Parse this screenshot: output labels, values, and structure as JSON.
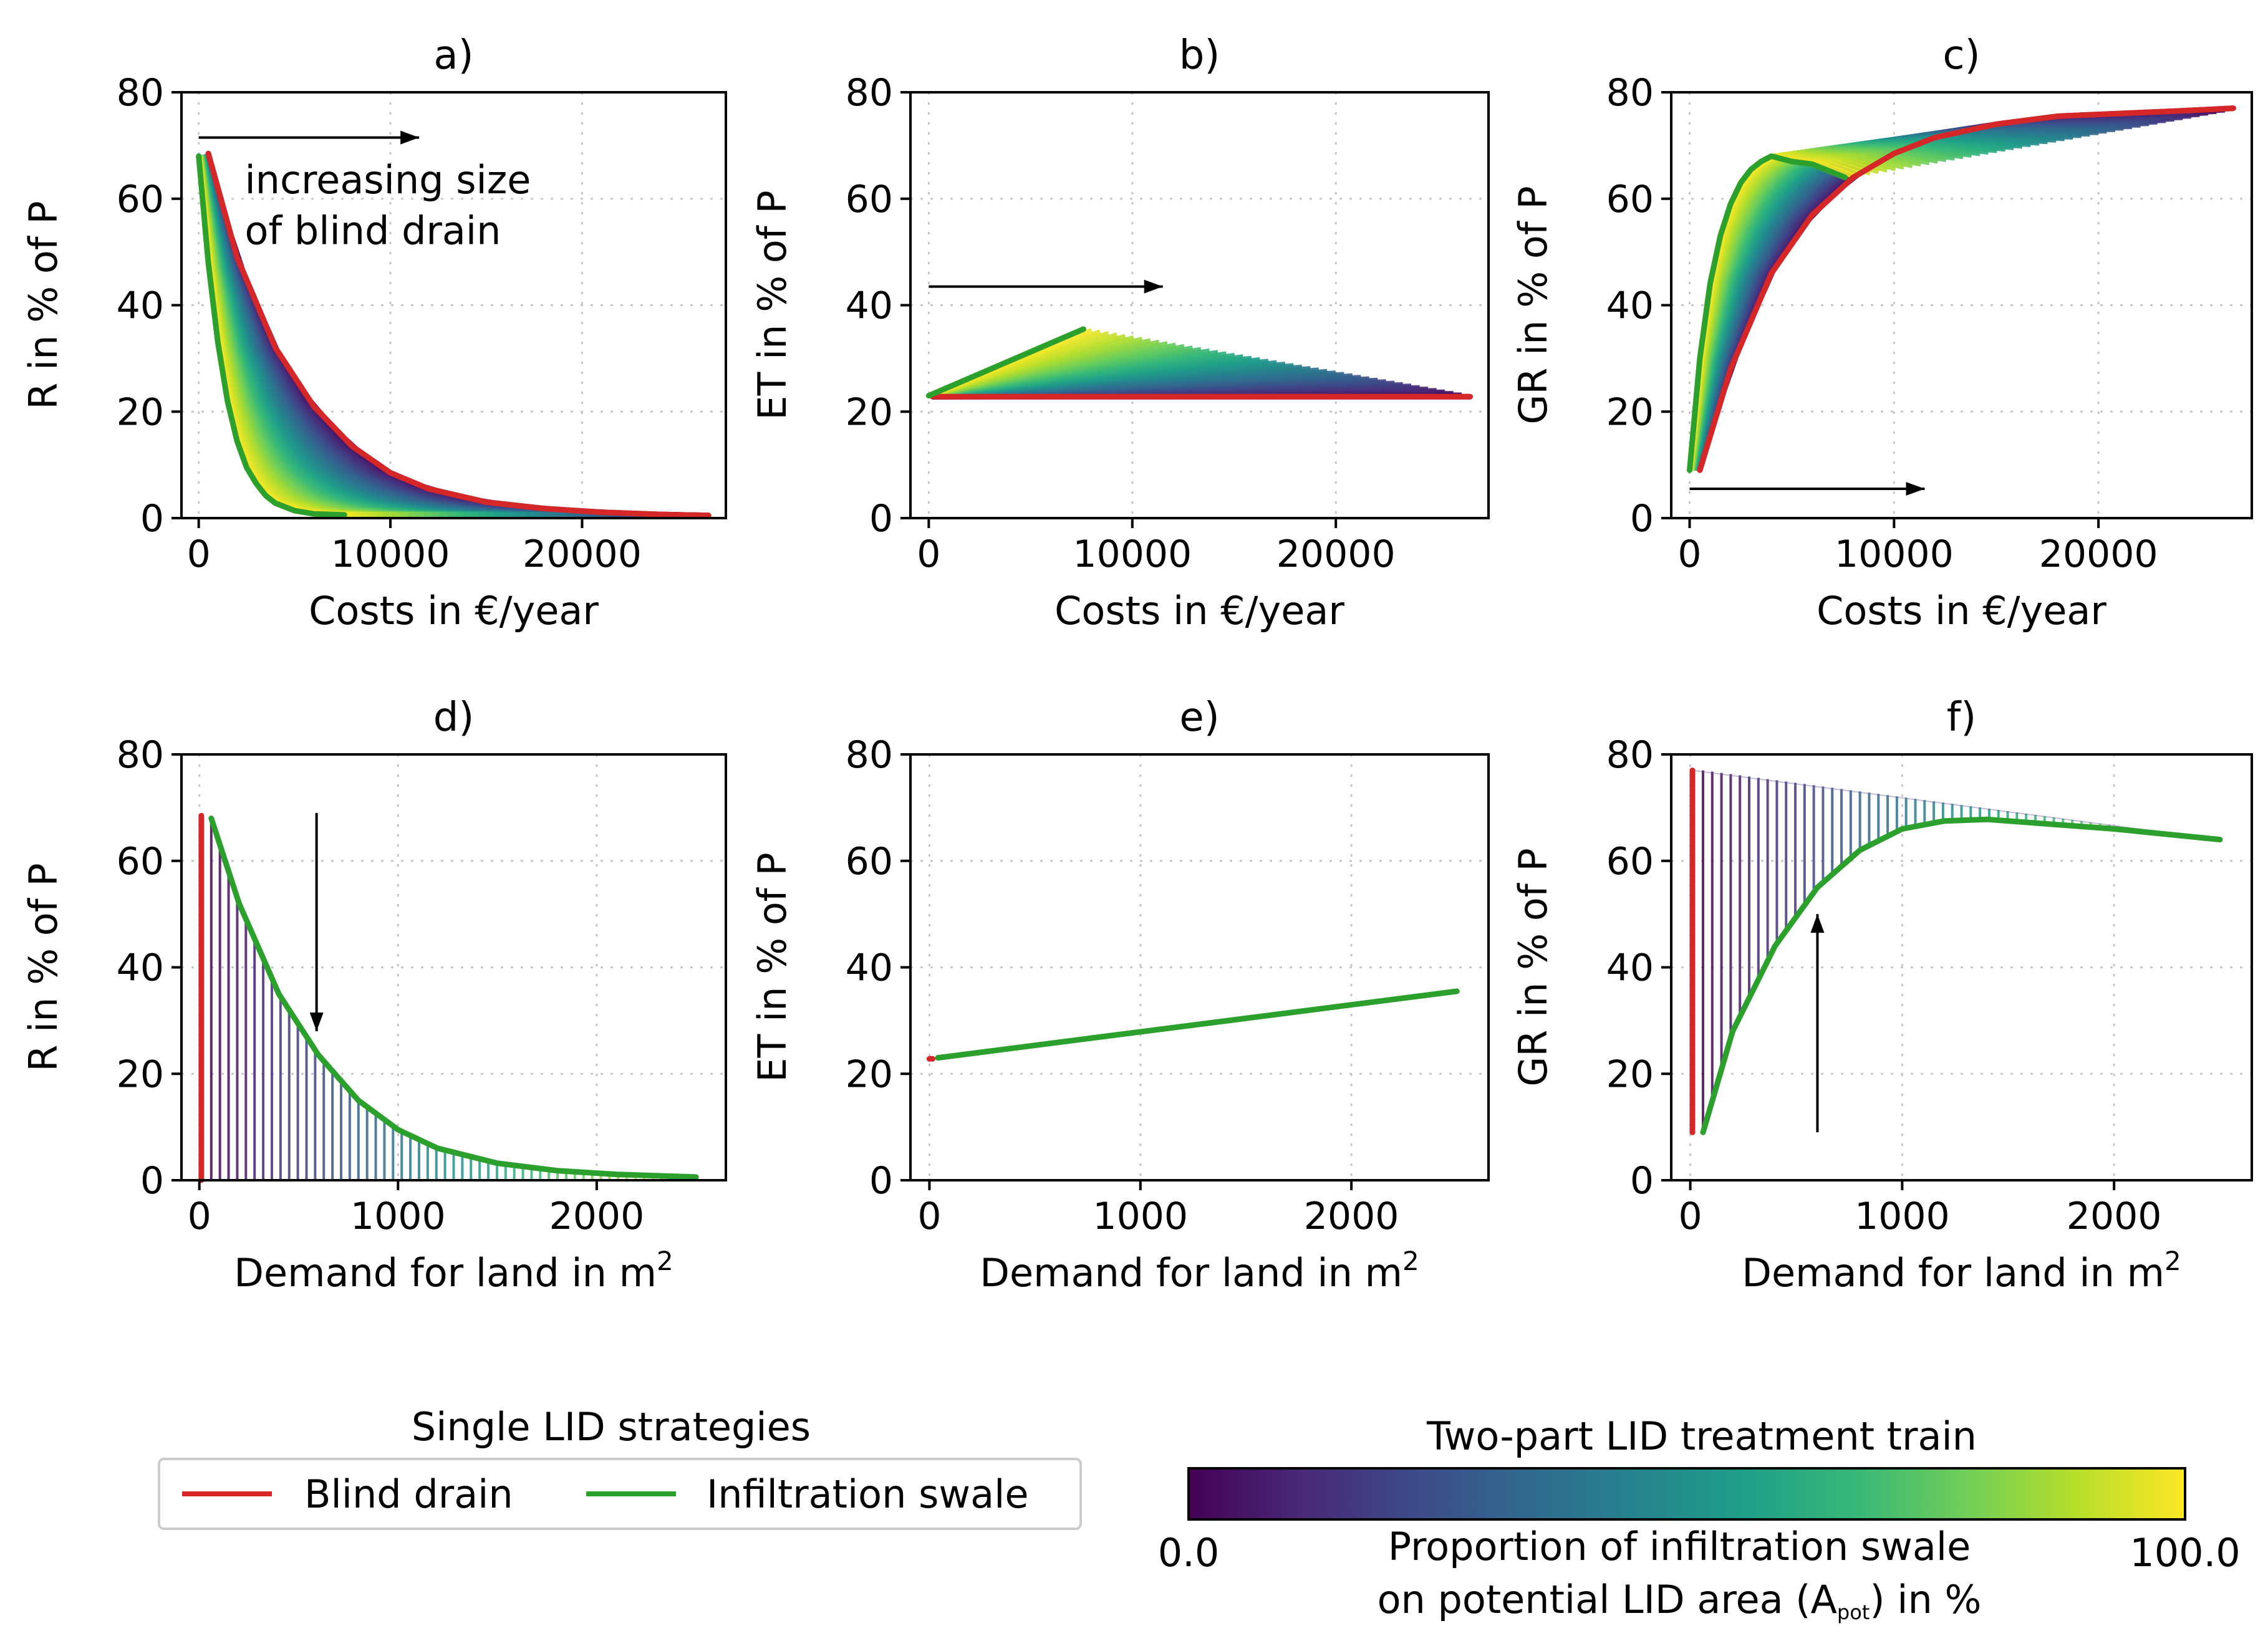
{
  "chart_data": [
    {
      "type": "line",
      "id": "a",
      "title": "a)",
      "xlabel": "Costs in €/year",
      "ylabel": "R in % of P",
      "xlim": [
        -900,
        27500
      ],
      "ylim": [
        0,
        80
      ],
      "xticks": [
        0,
        10000,
        20000
      ],
      "yticks": [
        0,
        20,
        40,
        60,
        80
      ],
      "xtick_labels": [
        "0",
        "10000",
        "20000"
      ],
      "ytick_labels": [
        "0",
        "20",
        "40",
        "60",
        "80"
      ],
      "series": [
        {
          "name": "Blind drain",
          "color": "#d62728",
          "x": [
            500,
            2000,
            4000,
            6000,
            8000,
            10000,
            12000,
            15000,
            18000,
            21000,
            24000,
            26600
          ],
          "y": [
            68.5,
            49,
            32,
            21,
            13.5,
            8.5,
            5.5,
            3,
            1.8,
            1.1,
            0.7,
            0.5
          ]
        },
        {
          "name": "Infiltration swale",
          "color": "#2ca02c",
          "x": [
            0,
            500,
            1000,
            1500,
            2000,
            2500,
            3000,
            3500,
            4000,
            5000,
            6000,
            7600
          ],
          "y": [
            68,
            48,
            33,
            22,
            14.5,
            9.5,
            6.5,
            4.2,
            2.8,
            1.4,
            0.8,
            0.6
          ]
        }
      ],
      "annotations": [
        {
          "text": "increasing size",
          "direction": "right"
        },
        {
          "text": "of blind drain"
        }
      ]
    },
    {
      "type": "line",
      "id": "b",
      "title": "b)",
      "xlabel": "Costs in €/year",
      "ylabel": "ET in % of P",
      "xlim": [
        -900,
        27500
      ],
      "ylim": [
        0,
        80
      ],
      "xticks": [
        0,
        10000,
        20000
      ],
      "yticks": [
        0,
        20,
        40,
        60,
        80
      ],
      "xtick_labels": [
        "0",
        "10000",
        "20000"
      ],
      "ytick_labels": [
        "0",
        "20",
        "40",
        "60",
        "80"
      ],
      "series": [
        {
          "name": "Blind drain",
          "color": "#d62728",
          "x": [
            200,
            26600
          ],
          "y": [
            22.8,
            22.8
          ]
        },
        {
          "name": "Infiltration swale",
          "color": "#2ca02c",
          "x": [
            0,
            7600
          ],
          "y": [
            23,
            35.5
          ]
        }
      ],
      "annotations": [
        {
          "text": "",
          "direction": "right"
        }
      ]
    },
    {
      "type": "line",
      "id": "c",
      "title": "c)",
      "xlabel": "Costs in €/year",
      "ylabel": "GR in % of P",
      "xlim": [
        -900,
        27500
      ],
      "ylim": [
        0,
        80
      ],
      "xticks": [
        0,
        10000,
        20000
      ],
      "yticks": [
        0,
        20,
        40,
        60,
        80
      ],
      "xtick_labels": [
        "0",
        "10000",
        "20000"
      ],
      "ytick_labels": [
        "0",
        "20",
        "40",
        "60",
        "80"
      ],
      "series": [
        {
          "name": "Blind drain",
          "color": "#d62728",
          "x": [
            500,
            2000,
            4000,
            6000,
            8000,
            10000,
            12000,
            15000,
            18000,
            21000,
            24000,
            26600
          ],
          "y": [
            9,
            28,
            46,
            57,
            64,
            68.5,
            71.5,
            74,
            75.5,
            76,
            76.5,
            77
          ]
        },
        {
          "name": "Infiltration swale",
          "color": "#2ca02c",
          "x": [
            0,
            500,
            1000,
            1500,
            2000,
            2500,
            3000,
            3500,
            4000,
            5000,
            6000,
            7600
          ],
          "y": [
            9,
            30,
            44,
            53,
            59,
            63,
            65.5,
            67,
            68,
            67,
            66.5,
            64
          ]
        }
      ],
      "annotations": [
        {
          "text": "",
          "direction": "right"
        }
      ]
    },
    {
      "type": "line",
      "id": "d",
      "title": "d)",
      "xlabel": "Demand for land in m",
      "xlabel_sup": "2",
      "ylabel": "R in % of P",
      "xlim": [
        -90,
        2650
      ],
      "ylim": [
        0,
        80
      ],
      "xticks": [
        0,
        1000,
        2000
      ],
      "yticks": [
        0,
        20,
        40,
        60,
        80
      ],
      "xtick_labels": [
        "0",
        "1000",
        "2000"
      ],
      "ytick_labels": [
        "0",
        "20",
        "40",
        "60",
        "80"
      ],
      "series": [
        {
          "name": "Blind drain",
          "color": "#d62728",
          "x": [
            10,
            10
          ],
          "y": [
            0,
            68.5
          ]
        },
        {
          "name": "Infiltration swale",
          "color": "#2ca02c",
          "x": [
            60,
            200,
            400,
            600,
            800,
            1000,
            1200,
            1500,
            1800,
            2100,
            2500
          ],
          "y": [
            68,
            52,
            35,
            23.5,
            15,
            9.5,
            6,
            3.2,
            1.8,
            1.1,
            0.6
          ]
        }
      ],
      "annotations": [
        {
          "text": "",
          "direction": "down"
        }
      ]
    },
    {
      "type": "line",
      "id": "e",
      "title": "e)",
      "xlabel": "Demand for land in m",
      "xlabel_sup": "2",
      "ylabel": "ET in % of P",
      "xlim": [
        -90,
        2650
      ],
      "ylim": [
        0,
        80
      ],
      "xticks": [
        0,
        1000,
        2000
      ],
      "yticks": [
        0,
        20,
        40,
        60,
        80
      ],
      "xtick_labels": [
        "0",
        "1000",
        "2000"
      ],
      "ytick_labels": [
        "0",
        "20",
        "40",
        "60",
        "80"
      ],
      "series": [
        {
          "name": "Blind drain",
          "color": "#d62728",
          "x": [
            0,
            15
          ],
          "y": [
            22.8,
            22.8
          ]
        },
        {
          "name": "Infiltration swale",
          "color": "#2ca02c",
          "x": [
            40,
            2500
          ],
          "y": [
            23,
            35.5
          ]
        }
      ]
    },
    {
      "type": "line",
      "id": "f",
      "title": "f)",
      "xlabel": "Demand for land in m",
      "xlabel_sup": "2",
      "ylabel": "GR in % of P",
      "xlim": [
        -90,
        2650
      ],
      "ylim": [
        0,
        80
      ],
      "xticks": [
        0,
        1000,
        2000
      ],
      "yticks": [
        0,
        20,
        40,
        60,
        80
      ],
      "xtick_labels": [
        "0",
        "1000",
        "2000"
      ],
      "ytick_labels": [
        "0",
        "20",
        "40",
        "60",
        "80"
      ],
      "series": [
        {
          "name": "Blind drain",
          "color": "#d62728",
          "x": [
            10,
            10
          ],
          "y": [
            9,
            77
          ]
        },
        {
          "name": "Infiltration swale",
          "color": "#2ca02c",
          "x": [
            60,
            200,
            400,
            600,
            800,
            1000,
            1200,
            1400,
            1600,
            2000,
            2500
          ],
          "y": [
            9,
            28,
            44,
            55,
            62,
            66,
            67.5,
            67.8,
            67.2,
            66,
            64
          ]
        }
      ],
      "annotations": [
        {
          "text": "",
          "direction": "up"
        }
      ]
    }
  ],
  "legend": {
    "title": "Single LID strategies",
    "entries": [
      {
        "label": "Blind drain",
        "color": "#d62728"
      },
      {
        "label": "Infiltration swale",
        "color": "#2ca02c"
      }
    ]
  },
  "colorbar": {
    "title": "Two-part LID treatment train",
    "min_label": "0.0",
    "max_label": "100.0",
    "label_line1": "Proportion of infiltration swale",
    "label_line2_pre": "on potential LID area (A",
    "label_line2_sub": "pot",
    "label_line2_post": ") in %",
    "colormap": [
      "#440154",
      "#482878",
      "#3e4989",
      "#31688e",
      "#26828e",
      "#1f9e89",
      "#35b779",
      "#6ece58",
      "#b5de2b",
      "#fde725"
    ]
  }
}
